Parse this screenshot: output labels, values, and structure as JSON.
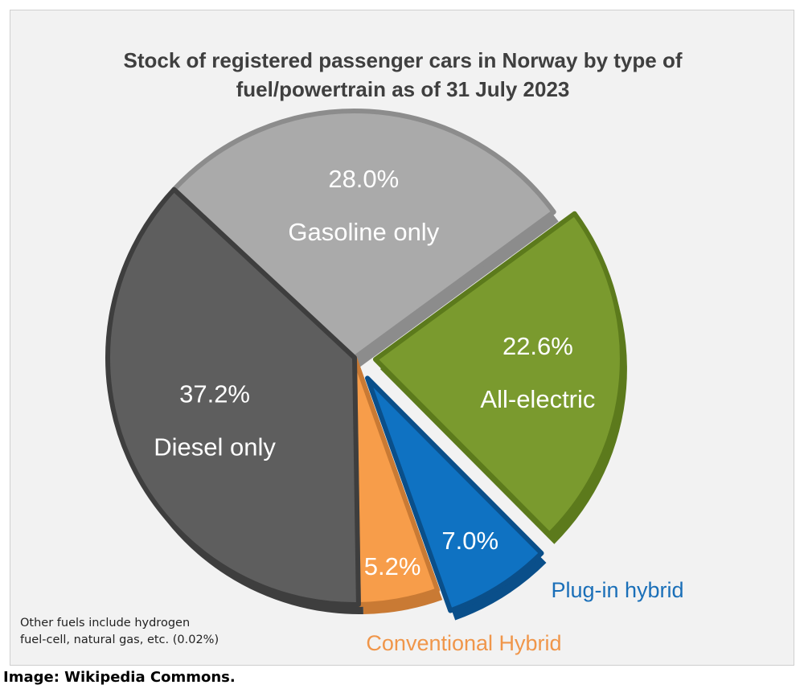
{
  "chart_data": {
    "type": "pie",
    "title_lines": [
      "Stock of registered passenger cars in Norway by type of",
      "fuel/powertrain as of 31 July 2023"
    ],
    "slices": [
      {
        "name": "Gasoline only",
        "value": 28.0,
        "label": "28.0%",
        "color": "#aaaaaa",
        "edge": "#8c8c8c",
        "text_color": "#ffffff"
      },
      {
        "name": "All-electric",
        "value": 22.6,
        "label": "22.6%",
        "color": "#7a9a2e",
        "edge": "#5c7a1c",
        "text_color": "#ffffff",
        "exploded": true
      },
      {
        "name": "Plug-in hybrid",
        "value": 7.0,
        "label": "7.0%",
        "color": "#0f72c2",
        "edge": "#0a4f8a",
        "text_color": "#ffffff",
        "exploded": true,
        "outer_label_color": "#1a6fb8"
      },
      {
        "name": "Conventional Hybrid",
        "value": 5.2,
        "label": "5.2%",
        "color": "#f79d4a",
        "edge": "#c97a34",
        "text_color": "#ffffff",
        "outer_label_color": "#f0964a"
      },
      {
        "name": "Diesel only",
        "value": 37.2,
        "label": "37.2%",
        "color": "#5e5e5e",
        "edge": "#3e3e3e",
        "text_color": "#ffffff"
      }
    ],
    "note_lines": [
      "Other fuels include hydrogen",
      "fuel-cell, natural gas, etc. (0.02%)"
    ]
  },
  "credit": "Image: Wikipedia Commons."
}
